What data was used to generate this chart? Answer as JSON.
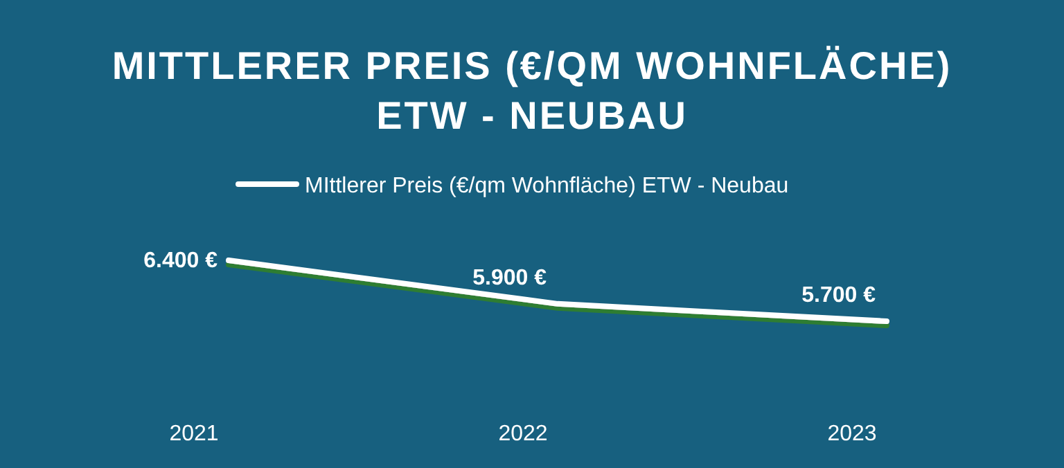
{
  "chart_data": {
    "type": "line",
    "title": "MITTLERER PREIS (€/QM WOHNFLÄCHE) ETW - NEUBAU",
    "categories": [
      "2021",
      "2022",
      "2023"
    ],
    "series": [
      {
        "name": "MIttlerer Preis (€/qm Wohnfläche) ETW - Neubau",
        "color": "#ffffff",
        "values": [
          6400,
          5900,
          5700
        ],
        "value_labels": [
          "6.400 €",
          "5.900 €",
          "5.700 €"
        ]
      }
    ],
    "legend": "top",
    "marker": "none",
    "line_style": "solid"
  }
}
